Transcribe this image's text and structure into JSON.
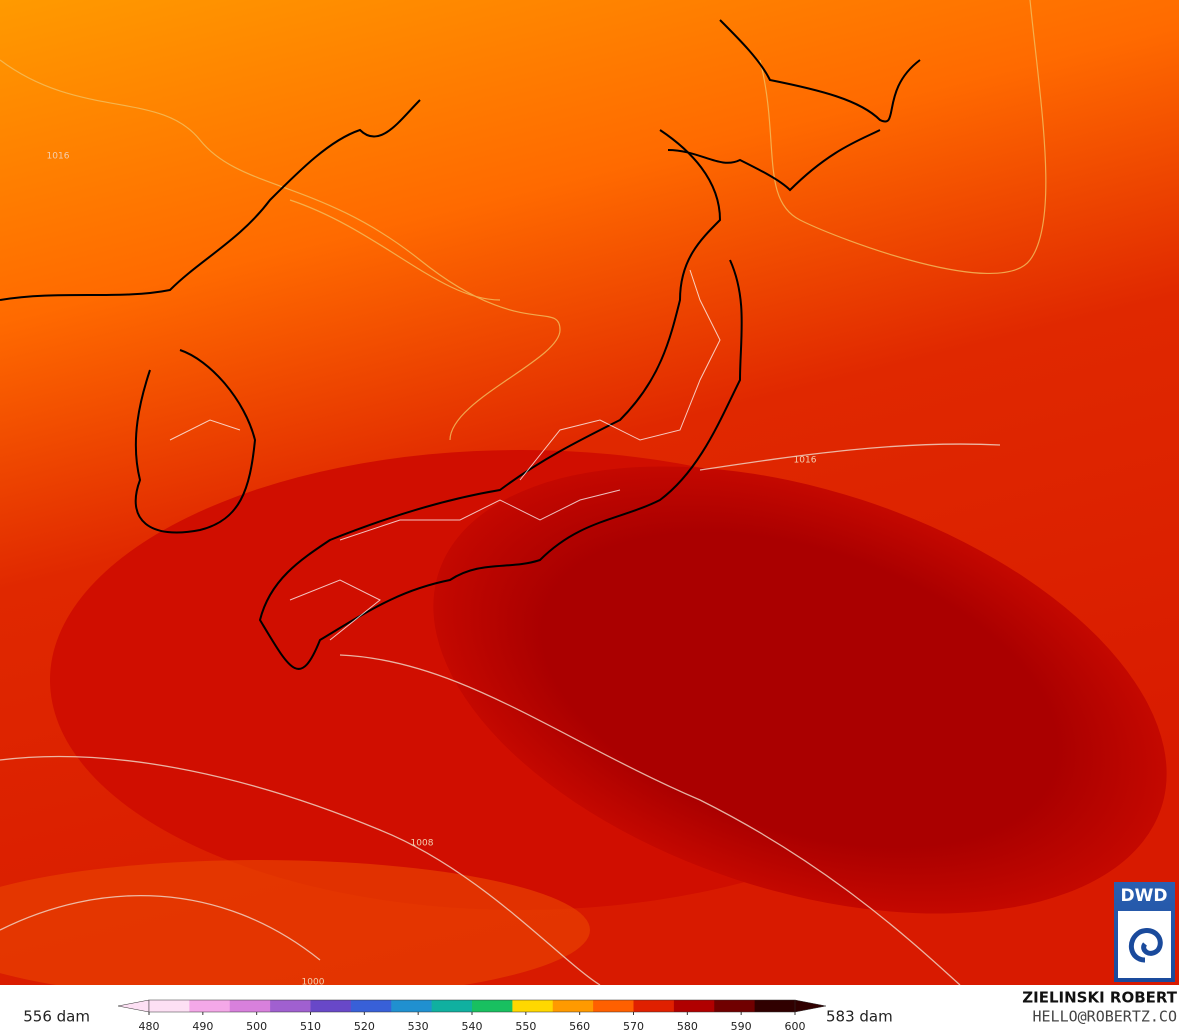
{
  "map": {
    "isobar_labels": [
      "1016",
      "1016",
      "1008",
      "1000"
    ]
  },
  "colorbar": {
    "min_label": "556 dam",
    "max_label": "583 dam",
    "ticks": [
      480,
      490,
      500,
      510,
      520,
      530,
      540,
      550,
      560,
      570,
      580,
      590,
      600
    ]
  },
  "logo": "DWD",
  "credits": {
    "author": "ZIELINSKI ROBERT",
    "contact": "HELLO@ROBERTZ.CO"
  }
}
